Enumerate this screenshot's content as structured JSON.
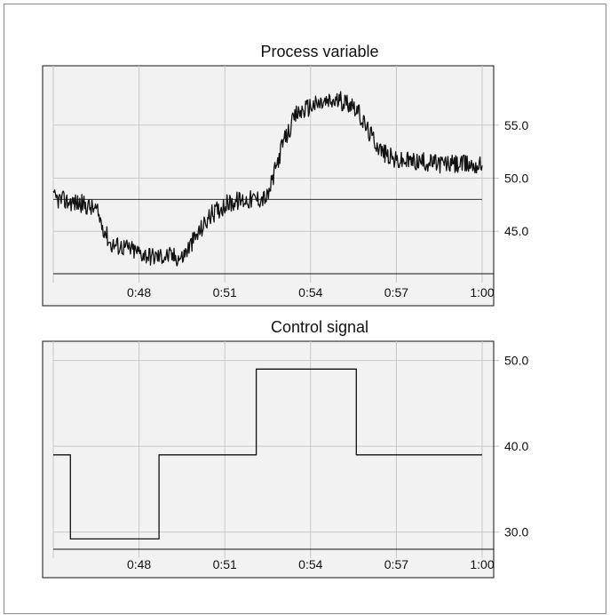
{
  "chart_data": [
    {
      "type": "line",
      "title": "Process variable",
      "xlabel": "",
      "ylabel": "",
      "x_ticks": [
        "0:48",
        "0:51",
        "0:54",
        "0:57",
        "1:00"
      ],
      "y_ticks": [
        "45.0",
        "50.0",
        "55.0"
      ],
      "xlim": [
        "0:45",
        "1:00"
      ],
      "ylim": [
        41.0,
        59.5
      ],
      "grid": true,
      "reference_line": 48.0,
      "series": [
        {
          "points": [
            [
              "0:45",
              48.1
            ],
            [
              "0:45.5",
              47.8
            ],
            [
              "0:46",
              47.6
            ],
            [
              "0:46.5",
              47.0
            ],
            [
              "0:47",
              43.8
            ],
            [
              "0:47.5",
              43.5
            ],
            [
              "0:48",
              43.0
            ],
            [
              "0:48.5",
              42.6
            ],
            [
              "0:49",
              42.7
            ],
            [
              "0:49.5",
              42.5
            ],
            [
              "0:50",
              44.5
            ],
            [
              "0:50.5",
              46.5
            ],
            [
              "0:51",
              47.5
            ],
            [
              "0:51.5",
              47.9
            ],
            [
              "0:52",
              48.0
            ],
            [
              "0:52.5",
              48.2
            ],
            [
              "0:53",
              53.0
            ],
            [
              "0:53.5",
              56.0
            ],
            [
              "0:54",
              56.8
            ],
            [
              "0:54.5",
              57.1
            ],
            [
              "0:55",
              57.3
            ],
            [
              "0:55.5",
              57.0
            ],
            [
              "0:56",
              54.5
            ],
            [
              "0:56.5",
              52.5
            ],
            [
              "0:57",
              51.6
            ],
            [
              "0:57.5",
              51.6
            ],
            [
              "0:58",
              51.5
            ],
            [
              "0:58.5",
              51.4
            ],
            [
              "0:59",
              51.3
            ],
            [
              "0:59.5",
              51.3
            ],
            [
              "1:00",
              51.2
            ]
          ]
        }
      ]
    },
    {
      "type": "line",
      "title": "Control signal",
      "xlabel": "",
      "ylabel": "",
      "x_ticks": [
        "0:48",
        "0:51",
        "0:54",
        "0:57",
        "1:00"
      ],
      "y_ticks": [
        "30.0",
        "40.0",
        "50.0"
      ],
      "xlim": [
        "0:45",
        "1:00"
      ],
      "ylim": [
        28.0,
        51.0
      ],
      "grid": true,
      "series": [
        {
          "step": true,
          "points": [
            [
              "0:45",
              39.0
            ],
            [
              "0:45.6",
              39.0
            ],
            [
              "0:45.6",
              29.2
            ],
            [
              "0:48.7",
              29.2
            ],
            [
              "0:48.7",
              39.0
            ],
            [
              "0:52.1",
              39.0
            ],
            [
              "0:52.1",
              49.0
            ],
            [
              "0:55.6",
              49.0
            ],
            [
              "0:55.6",
              39.0
            ],
            [
              "1:00",
              39.0
            ]
          ]
        }
      ]
    }
  ]
}
